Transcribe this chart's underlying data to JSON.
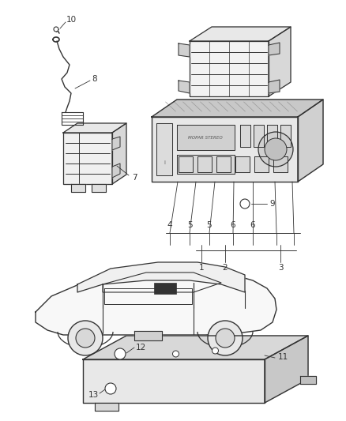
{
  "bg_color": "#ffffff",
  "line_color": "#333333",
  "gray_light": "#cccccc",
  "gray_mid": "#aaaaaa",
  "gray_dark": "#888888",
  "figsize": [
    4.38,
    5.33
  ],
  "dpi": 100
}
